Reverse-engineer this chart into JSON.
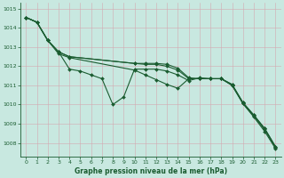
{
  "bg_color": "#c8e8e0",
  "grid_color": "#aaccC4",
  "line_color": "#1a5c30",
  "xlabel": "Graphe pression niveau de la mer (hPa)",
  "xlim": [
    -0.5,
    23.5
  ],
  "ylim": [
    1007.3,
    1015.3
  ],
  "yticks": [
    1008,
    1009,
    1010,
    1011,
    1012,
    1013,
    1014,
    1015
  ],
  "xticks": [
    0,
    1,
    2,
    3,
    4,
    5,
    6,
    7,
    8,
    9,
    10,
    11,
    12,
    13,
    14,
    15,
    16,
    17,
    18,
    19,
    20,
    21,
    22,
    23
  ],
  "series1_x": [
    0,
    1,
    2,
    3,
    4,
    5,
    6,
    7,
    8,
    9,
    10,
    11,
    12,
    13,
    14,
    15,
    16,
    17,
    18,
    19,
    20,
    21,
    22,
    23
  ],
  "series1_y": [
    1014.55,
    1014.3,
    1013.35,
    1012.75,
    1011.85,
    1011.75,
    1011.55,
    1011.35,
    1010.0,
    1010.4,
    1011.85,
    1011.85,
    1011.85,
    1011.75,
    1011.55,
    1011.25,
    1011.4,
    1011.35,
    1011.35,
    1011.05,
    1010.1,
    1009.45,
    1008.75,
    1007.8
  ],
  "series2_x": [
    0,
    1,
    2,
    3,
    4,
    10,
    11,
    12,
    13,
    14,
    15,
    16,
    17,
    18,
    19,
    20,
    21,
    22,
    23
  ],
  "series2_y": [
    1014.55,
    1014.3,
    1013.35,
    1012.75,
    1012.5,
    1012.15,
    1012.15,
    1012.15,
    1012.1,
    1011.9,
    1011.4,
    1011.35,
    1011.35,
    1011.35,
    1011.05,
    1010.1,
    1009.45,
    1008.75,
    1007.8
  ],
  "series3_x": [
    0,
    1,
    2,
    3,
    4,
    10,
    11,
    12,
    13,
    14,
    15,
    16,
    17,
    18,
    19,
    20,
    21,
    22,
    23
  ],
  "series3_y": [
    1014.55,
    1014.3,
    1013.35,
    1012.75,
    1012.5,
    1012.15,
    1012.1,
    1012.1,
    1012.0,
    1011.8,
    1011.35,
    1011.35,
    1011.35,
    1011.35,
    1011.0,
    1010.05,
    1009.4,
    1008.7,
    1007.75
  ],
  "series4_x": [
    0,
    1,
    2,
    3,
    4,
    10,
    11,
    12,
    13,
    14,
    15,
    16,
    17,
    18,
    19,
    20,
    21,
    22,
    23
  ],
  "series4_y": [
    1014.55,
    1014.3,
    1013.35,
    1012.65,
    1012.45,
    1011.8,
    1011.55,
    1011.3,
    1011.05,
    1010.85,
    1011.35,
    1011.35,
    1011.35,
    1011.35,
    1011.0,
    1010.05,
    1009.35,
    1008.6,
    1007.7
  ]
}
